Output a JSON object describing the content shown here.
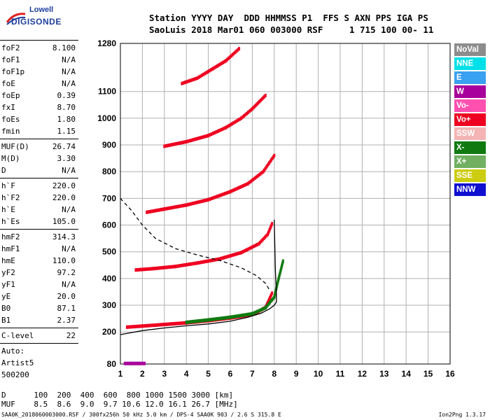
{
  "logo": {
    "line1": "Lowell",
    "line2": "DIGISONDE"
  },
  "header": {
    "line1": "Station YYYY DAY  DDD HHMMSS P1  FFS S AXN PPS IGA PS",
    "line2": "SaoLuis 2018 Mar01 060 003000 RSF     1 715 100 00- 11"
  },
  "params": {
    "group1": [
      {
        "name": "foF2",
        "value": "8.100"
      },
      {
        "name": "foF1",
        "value": "N/A"
      },
      {
        "name": "foF1p",
        "value": "N/A"
      },
      {
        "name": "foE",
        "value": "N/A"
      },
      {
        "name": "foEp",
        "value": "0.39"
      },
      {
        "name": "fxI",
        "value": "8.70"
      },
      {
        "name": "foEs",
        "value": "1.80"
      },
      {
        "name": "fmin",
        "value": "1.15"
      }
    ],
    "group2": [
      {
        "name": "MUF(D)",
        "value": "26.74"
      },
      {
        "name": "M(D)",
        "value": "3.30"
      },
      {
        "name": "D",
        "value": "N/A"
      }
    ],
    "group3": [
      {
        "name": "h`F",
        "value": "220.0"
      },
      {
        "name": "h`F2",
        "value": "220.0"
      },
      {
        "name": "h`E",
        "value": "N/A"
      },
      {
        "name": "h`Es",
        "value": "105.0"
      }
    ],
    "group4": [
      {
        "name": "hmF2",
        "value": "314.3"
      },
      {
        "name": "hmF1",
        "value": "N/A"
      },
      {
        "name": "hmE",
        "value": "110.0"
      },
      {
        "name": "yF2",
        "value": "97.2"
      },
      {
        "name": "yF1",
        "value": "N/A"
      },
      {
        "name": "yE",
        "value": "20.0"
      },
      {
        "name": "B0",
        "value": "87.1"
      },
      {
        "name": "B1",
        "value": "2.37"
      }
    ],
    "group5": [
      {
        "name": "C-level",
        "value": "22"
      }
    ],
    "auto": [
      "Auto:",
      "Artist5",
      "500200"
    ]
  },
  "legend": [
    {
      "label": "NoVal",
      "color": "#8c8c8c"
    },
    {
      "label": "NNE",
      "color": "#00e0e8"
    },
    {
      "label": "E",
      "color": "#3aa0f0"
    },
    {
      "label": "W",
      "color": "#a8009c"
    },
    {
      "label": "Vo-",
      "color": "#ff50b0"
    },
    {
      "label": "Vo+",
      "color": "#ee0020"
    },
    {
      "label": "SSW",
      "color": "#f4b4b4"
    },
    {
      "label": "X-",
      "color": "#107a10"
    },
    {
      "label": "X+",
      "color": "#70b060"
    },
    {
      "label": "SSE",
      "color": "#cccc10"
    },
    {
      "label": "NNW",
      "color": "#1010d0"
    }
  ],
  "muf_table": {
    "d_row": "D      100  200  400  600  800 1000 1500 3000 [km]",
    "m_row": "MUF    8.5  8.6  9.0  9.7 10.6 12.0 16.1 26.7 [MHz]"
  },
  "footer": {
    "left": "SAA0K_2018060003000.RSF / 300fx256h 50 kHz 5.0 km / DPS-4 SAA0K 903 / 2.6 S 315.8 E",
    "right": "Ion2Png 1.3.17"
  },
  "chart_data": {
    "type": "scatter",
    "title": "",
    "xlabel": "",
    "ylabel": "",
    "xlim": [
      1,
      16
    ],
    "ylim": [
      80,
      1280
    ],
    "x_ticks": [
      1,
      2,
      3,
      4,
      5,
      6,
      7,
      8,
      9,
      10,
      11,
      12,
      13,
      14,
      15,
      16
    ],
    "y_ticks": [
      80,
      200,
      300,
      400,
      500,
      600,
      700,
      800,
      900,
      1000,
      1100,
      1280
    ],
    "grid": true,
    "series": [
      {
        "name": "Vo+",
        "color": "#ee0020",
        "traces": [
          {
            "x": [
              1.3,
              2.0,
              3.0,
              4.0,
              5.0,
              6.0,
              6.8,
              7.2,
              7.6,
              7.9
            ],
            "y": [
              218,
              222,
              228,
              234,
              242,
              252,
              262,
              272,
              292,
              345
            ]
          },
          {
            "x": [
              1.7,
              2.5,
              3.5,
              4.5,
              5.5,
              6.5,
              7.3,
              7.7,
              7.9
            ],
            "y": [
              432,
              437,
              445,
              458,
              473,
              497,
              530,
              565,
              605
            ]
          },
          {
            "x": [
              2.2,
              3.0,
              4.0,
              5.0,
              6.0,
              6.8,
              7.5,
              8.0
            ],
            "y": [
              648,
              660,
              675,
              695,
              725,
              755,
              800,
              860
            ]
          },
          {
            "x": [
              3.0,
              4.0,
              5.0,
              5.8,
              6.5,
              7.0,
              7.6
            ],
            "y": [
              895,
              912,
              935,
              965,
              1000,
              1035,
              1085
            ]
          },
          {
            "x": [
              3.8,
              4.5,
              5.2,
              5.8,
              6.4
            ],
            "y": [
              1130,
              1150,
              1185,
              1215,
              1260
            ]
          }
        ]
      },
      {
        "name": "X-",
        "color": "#107a10",
        "traces": [
          {
            "x": [
              4.0,
              5.0,
              6.0,
              7.0,
              7.6,
              8.0,
              8.2,
              8.4
            ],
            "y": [
              236,
              245,
              255,
              268,
              290,
              330,
              400,
              465
            ]
          }
        ]
      },
      {
        "name": "Es",
        "color": "#a8009c",
        "traces": [
          {
            "x": [
              1.2,
              1.5,
              1.8,
              2.1
            ],
            "y": [
              82,
              82,
              82,
              82
            ]
          }
        ]
      }
    ],
    "lines": [
      {
        "name": "profile",
        "style": "solid",
        "x": [
          1.0,
          2.0,
          3.0,
          4.0,
          5.0,
          6.0,
          6.8,
          7.4,
          7.8,
          8.0,
          8.1,
          8.1,
          8.05,
          8.0
        ],
        "y": [
          190,
          205,
          215,
          223,
          230,
          240,
          255,
          270,
          287,
          300,
          312,
          340,
          430,
          620
        ]
      },
      {
        "name": "virtual-height-model",
        "style": "dashed",
        "x": [
          1.0,
          1.5,
          2.0,
          2.6,
          3.5,
          4.5,
          5.5,
          6.5,
          7.2,
          7.6,
          7.8
        ],
        "y": [
          700,
          655,
          600,
          550,
          512,
          488,
          468,
          440,
          410,
          382,
          355
        ]
      }
    ]
  }
}
